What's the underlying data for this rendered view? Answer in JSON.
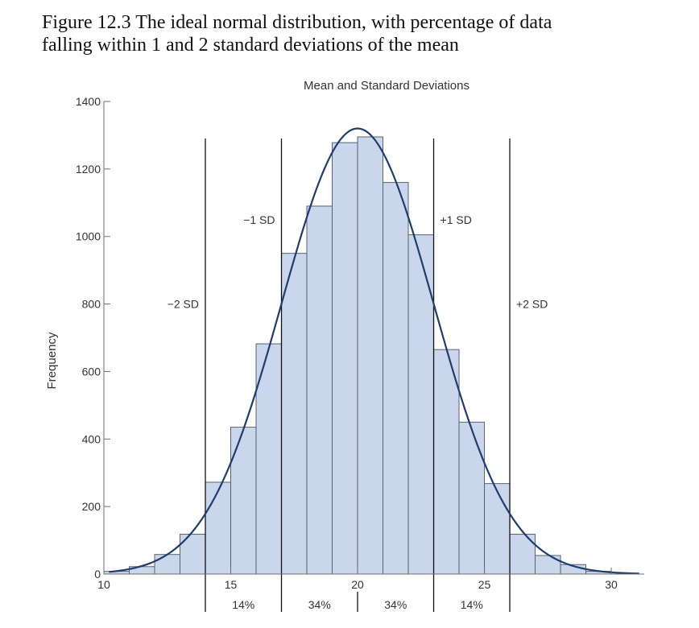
{
  "figure": {
    "title_line1": "Figure 12.3 The ideal normal distribution, with percentage of data",
    "title_line2": "falling within 1 and 2 standard deviations of the mean"
  },
  "chart_data": {
    "type": "bar",
    "title": "Mean and Standard Deviations",
    "ylabel": "Frequency",
    "xlabel": "",
    "xlim": [
      10,
      31.3
    ],
    "ylim": [
      0,
      1400
    ],
    "x_ticks": [
      10,
      15,
      20,
      25,
      30
    ],
    "y_ticks": [
      0,
      200,
      400,
      600,
      800,
      1000,
      1200,
      1400
    ],
    "grid": false,
    "bin_width": 1,
    "bins": [
      {
        "start": 10,
        "value": 8
      },
      {
        "start": 11,
        "value": 22
      },
      {
        "start": 12,
        "value": 58
      },
      {
        "start": 13,
        "value": 118
      },
      {
        "start": 14,
        "value": 272
      },
      {
        "start": 15,
        "value": 435
      },
      {
        "start": 16,
        "value": 682
      },
      {
        "start": 17,
        "value": 950
      },
      {
        "start": 18,
        "value": 1090
      },
      {
        "start": 19,
        "value": 1278
      },
      {
        "start": 20,
        "value": 1295
      },
      {
        "start": 21,
        "value": 1160
      },
      {
        "start": 22,
        "value": 1005
      },
      {
        "start": 23,
        "value": 665
      },
      {
        "start": 24,
        "value": 450
      },
      {
        "start": 25,
        "value": 268
      },
      {
        "start": 26,
        "value": 118
      },
      {
        "start": 27,
        "value": 55
      },
      {
        "start": 28,
        "value": 28
      },
      {
        "start": 29,
        "value": 8
      }
    ],
    "curve": {
      "mean": 20,
      "sd": 3,
      "peak": 1320,
      "from": 10.2,
      "to": 31.1
    },
    "sd_lines": [
      {
        "x": 14,
        "label": "−2 SD",
        "label_value": 800,
        "label_side": "left"
      },
      {
        "x": 17,
        "label": "−1 SD",
        "label_value": 1050,
        "label_side": "left"
      },
      {
        "x": 23,
        "label": "+1 SD",
        "label_value": 1050,
        "label_side": "right"
      },
      {
        "x": 26,
        "label": "+2 SD",
        "label_value": 800,
        "label_side": "right"
      }
    ],
    "mean_marker": {
      "x": 20
    },
    "percent_labels": [
      {
        "x": 15.5,
        "label": "14%"
      },
      {
        "x": 18.5,
        "label": "34%"
      },
      {
        "x": 21.5,
        "label": "34%"
      },
      {
        "x": 24.5,
        "label": "14%"
      }
    ],
    "colors": {
      "bar_fill": "#c9d6ec",
      "bar_stroke": "#5a6170",
      "curve": "#1f3d6e",
      "line": "#111111",
      "axis": "#6e6e6e",
      "text": "#333333"
    }
  }
}
